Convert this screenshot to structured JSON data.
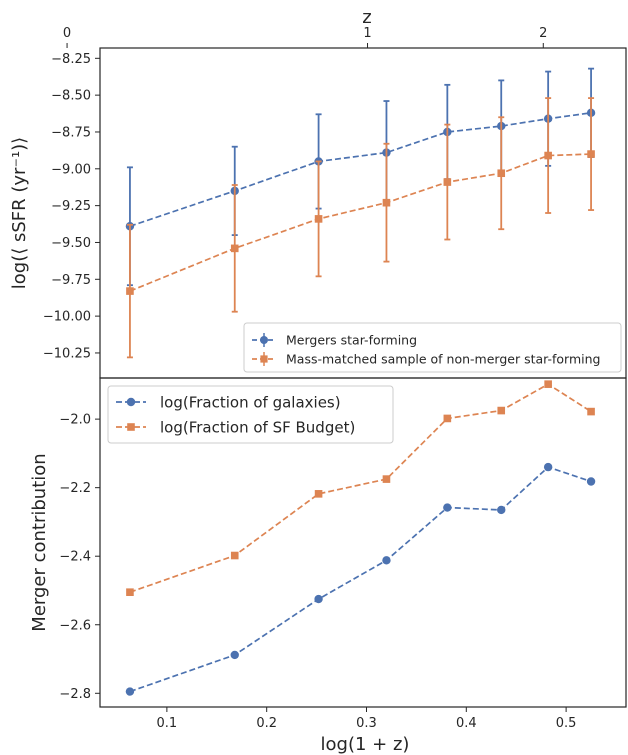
{
  "chart_data": [
    {
      "type": "line",
      "panel": "top",
      "xlabel_top": "z",
      "ylabel": "log(⟨ sSFR (yr⁻¹)⟩",
      "ylim": [
        -10.42,
        -8.18
      ],
      "yticks": [
        -8.25,
        -8.5,
        -8.75,
        -9.0,
        -9.25,
        -9.5,
        -9.75,
        -10.0,
        -10.25
      ],
      "ytick_labels": [
        "−8.25",
        "−8.50",
        "−8.75",
        "−9.00",
        "−9.25",
        "−9.50",
        "−9.75",
        "−10.00",
        "−10.25"
      ],
      "top_axis": {
        "ticks": [
          0,
          1,
          2
        ],
        "labels": [
          "0",
          "1",
          "2"
        ]
      },
      "legend_position": "lower-right",
      "x": [
        0.063,
        0.168,
        0.252,
        0.32,
        0.381,
        0.435,
        0.482,
        0.525
      ],
      "series": [
        {
          "name": "Mergers star-forming",
          "color": "#4c72b0",
          "marker": "circle",
          "values": [
            -9.39,
            -9.15,
            -8.95,
            -8.89,
            -8.75,
            -8.71,
            -8.66,
            -8.62
          ],
          "err": [
            0.4,
            0.3,
            0.32,
            0.35,
            0.32,
            0.31,
            0.32,
            0.3
          ]
        },
        {
          "name": "Mass-matched sample of non-merger star-forming",
          "color": "#dd8452",
          "marker": "square",
          "values": [
            -9.83,
            -9.54,
            -9.34,
            -9.23,
            -9.09,
            -9.03,
            -8.91,
            -8.9
          ],
          "err": [
            0.45,
            0.43,
            0.39,
            0.4,
            0.39,
            0.38,
            0.39,
            0.38
          ]
        }
      ]
    },
    {
      "type": "line",
      "panel": "bottom",
      "xlabel": "log(1 + z)",
      "ylabel": "Merger contribution",
      "xlim": [
        0.033,
        0.56
      ],
      "ylim": [
        -2.84,
        -1.88
      ],
      "xticks": [
        0.1,
        0.2,
        0.3,
        0.4,
        0.5
      ],
      "xtick_labels": [
        "0.1",
        "0.2",
        "0.3",
        "0.4",
        "0.5"
      ],
      "yticks": [
        -2.0,
        -2.2,
        -2.4,
        -2.6,
        -2.8
      ],
      "ytick_labels": [
        "−2.0",
        "−2.2",
        "−2.4",
        "−2.6",
        "−2.8"
      ],
      "legend_position": "upper-left",
      "x": [
        0.063,
        0.168,
        0.252,
        0.32,
        0.381,
        0.435,
        0.482,
        0.525
      ],
      "series": [
        {
          "name": "log(Fraction of galaxies)",
          "color": "#4c72b0",
          "marker": "circle",
          "values": [
            -2.795,
            -2.688,
            -2.525,
            -2.412,
            -2.258,
            -2.265,
            -2.14,
            -2.182
          ]
        },
        {
          "name": "log(Fraction of SF Budget)",
          "color": "#dd8452",
          "marker": "square",
          "values": [
            -2.505,
            -2.398,
            -2.218,
            -2.175,
            -1.998,
            -1.975,
            -1.898,
            -1.978
          ]
        }
      ]
    }
  ]
}
